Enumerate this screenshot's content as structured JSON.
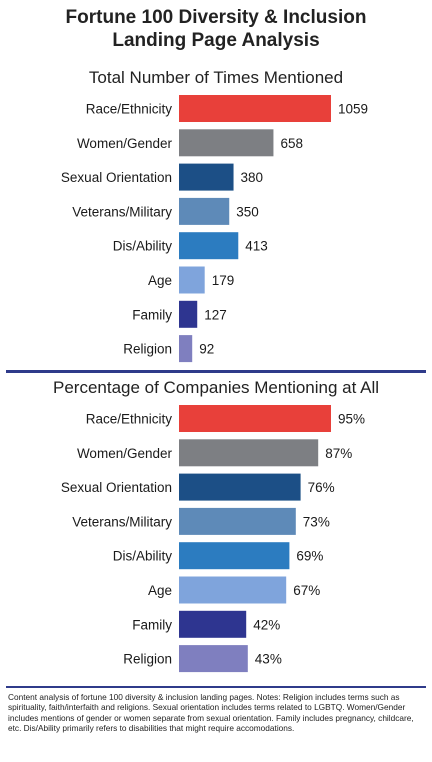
{
  "title_line1": "Fortune 100 Diversity & Inclusion",
  "title_line2": "Landing Page Analysis",
  "footnote": "Content analysis of fortune 100 diversity & inclusion landing pages. Notes: Religion includes terms such as spirituality, faith/interfaith and religions. Sexual orientation includes terms related to LGBTQ. Women/Gender includes mentions of gender or women separate from sexual orientation. Family includes pregnancy, childcare, etc. Dis/Ability primarily refers to disabilities that might require accomodations.",
  "colors": [
    "#e8403a",
    "#7d7f83",
    "#1c4f86",
    "#5e8ab8",
    "#2c7cc0",
    "#7fa4dc",
    "#2e3590",
    "#7f7fbf"
  ],
  "chart_data": [
    {
      "type": "bar",
      "orientation": "horizontal",
      "title": "Total Number of Times Mentioned",
      "categories": [
        "Race/Ethnicity",
        "Women/Gender",
        "Sexual Orientation",
        "Veterans/Military",
        "Dis/Ability",
        "Age",
        "Family",
        "Religion"
      ],
      "values": [
        1059,
        658,
        380,
        350,
        413,
        179,
        127,
        92
      ],
      "value_labels": [
        "1059",
        "658",
        "380",
        "350",
        "413",
        "179",
        "127",
        "92"
      ],
      "xlim": [
        0,
        1059
      ]
    },
    {
      "type": "bar",
      "orientation": "horizontal",
      "title": "Percentage of Companies Mentioning at All",
      "categories": [
        "Race/Ethnicity",
        "Women/Gender",
        "Sexual Orientation",
        "Veterans/Military",
        "Dis/Ability",
        "Age",
        "Family",
        "Religion"
      ],
      "values": [
        95,
        87,
        76,
        73,
        69,
        67,
        42,
        43
      ],
      "value_labels": [
        "95%",
        "87%",
        "76%",
        "73%",
        "69%",
        "67%",
        "42%",
        "43%"
      ],
      "xlim": [
        0,
        95
      ]
    }
  ]
}
